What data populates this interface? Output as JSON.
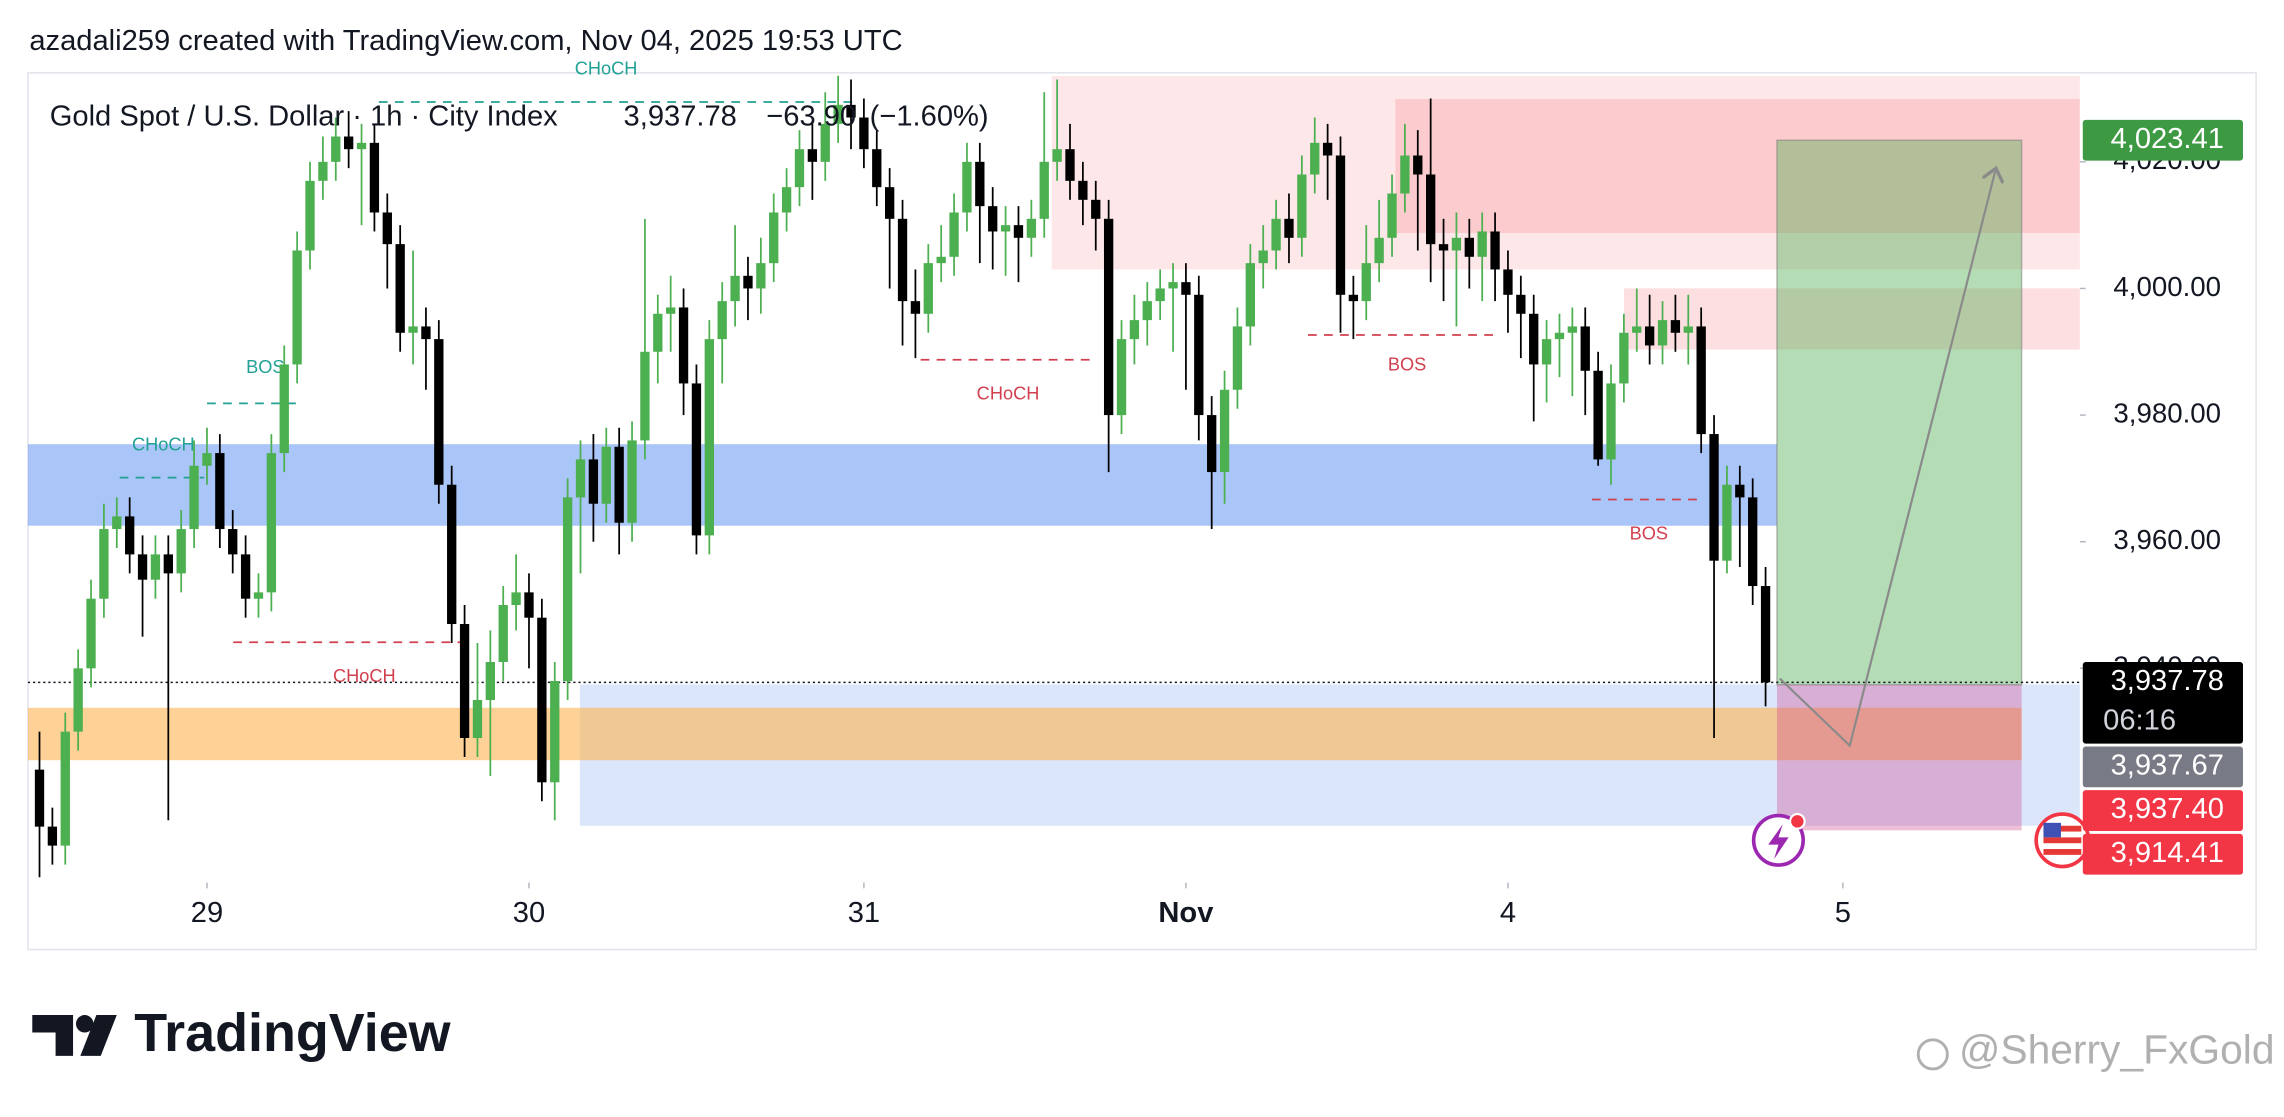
{
  "header": {
    "attribution": "azadali259 created with TradingView.com, Nov 04, 2025 19:53 UTC"
  },
  "chart_data": {
    "type": "candlestick",
    "title": "Gold Spot / U.S. Dollar · 1h · City Index",
    "last": {
      "value": 3937.78,
      "label": "3,937.78"
    },
    "change": {
      "value": -63.9,
      "label": "−63.90"
    },
    "change_pct": {
      "value": -1.6,
      "label": "(−1.60%)"
    },
    "colors": {
      "up": "#4caf50",
      "down": "#000000"
    },
    "x": [
      0,
      1,
      2,
      3,
      4,
      5,
      6,
      7,
      8,
      9,
      10,
      11,
      12,
      13,
      14,
      15,
      16,
      17,
      18,
      19,
      20,
      21,
      22,
      23,
      24,
      25,
      26,
      27,
      28,
      29,
      30,
      31,
      32,
      33,
      34,
      35,
      36,
      37,
      38,
      39,
      40,
      41,
      42,
      43,
      44,
      45,
      46,
      47,
      48,
      49,
      50,
      51,
      52,
      53,
      54,
      55,
      56,
      57,
      58,
      59,
      60,
      61,
      62,
      63,
      64,
      65,
      66,
      67,
      68,
      69,
      70,
      71,
      72,
      73,
      74,
      75,
      76,
      77,
      78,
      79,
      80,
      81,
      82,
      83,
      84,
      85,
      86,
      87,
      88,
      89,
      90,
      91,
      92,
      93,
      94,
      95,
      96,
      97,
      98,
      99,
      100,
      101,
      102,
      103,
      104,
      105,
      106,
      107,
      108,
      109,
      110,
      111,
      112,
      113,
      114,
      115,
      116,
      117,
      118,
      119,
      120,
      121,
      122,
      123,
      124,
      125,
      126,
      127,
      128,
      129,
      130,
      131,
      132,
      133,
      134
    ],
    "open": [
      3924,
      3915,
      3912,
      3930,
      3940,
      3951,
      3962,
      3964,
      3958,
      3954,
      3958,
      3955,
      3962,
      3972,
      3974,
      3962,
      3958,
      3951,
      3952,
      3974,
      3988,
      4006,
      4017,
      4020,
      4024,
      4022,
      4023,
      4012,
      4007,
      3993,
      3994,
      3992,
      3969,
      3947,
      3929,
      3935,
      3941,
      3950,
      3952,
      3948,
      3922,
      3938,
      3967,
      3973,
      3966,
      3975,
      3963,
      3976,
      3990,
      3996,
      3997,
      3985,
      3961,
      3992,
      3998,
      4002,
      4000,
      4004,
      4012,
      4016,
      4022,
      4020,
      4026,
      4029,
      4027,
      4022,
      4016,
      4011,
      3998,
      3996,
      4004,
      4005,
      4012,
      4020,
      4013,
      4009,
      4010,
      4008,
      4011,
      4020,
      4022,
      4017,
      4014,
      4011,
      3980,
      3992,
      3995,
      3998,
      4000,
      4001,
      3999,
      3980,
      3971,
      3984,
      3994,
      4004,
      4006,
      4011,
      4008,
      4018,
      4023,
      4021,
      3999,
      3998,
      4004,
      4008,
      4015,
      4021,
      4018,
      4007,
      4006,
      4008,
      4005,
      4009,
      4003,
      3999,
      3996,
      3988,
      3992,
      3993,
      3994,
      3987,
      3973,
      3985,
      3993,
      3994,
      3991,
      3995,
      3993,
      3994,
      3977,
      3957,
      3969,
      3967,
      3953
    ],
    "high": [
      3930,
      3918,
      3933,
      3943,
      3954,
      3966,
      3967,
      3967,
      3961,
      3961,
      3961,
      3965,
      3976,
      3978,
      3977,
      3965,
      3961,
      3955,
      3977,
      3991,
      4009,
      4020,
      4024,
      4027,
      4028,
      4026,
      4026,
      4015,
      4010,
      4006,
      3997,
      3995,
      3972,
      3950,
      3944,
      3946,
      3953,
      3958,
      3955,
      3951,
      3941,
      3970,
      3976,
      3977,
      3978,
      3978,
      3979,
      4011,
      3999,
      4002,
      4000,
      3988,
      3995,
      4001,
      4010,
      4005,
      4008,
      4015,
      4019,
      4025,
      4026,
      4031,
      4034,
      4033,
      4030,
      4025,
      4019,
      4014,
      4003,
      4007,
      4010,
      4015,
      4023,
      4023,
      4016,
      4013,
      4013,
      4014,
      4031,
      4033,
      4026,
      4020,
      4017,
      4014,
      3995,
      3999,
      4001,
      4003,
      4004,
      4004,
      4002,
      3983,
      3987,
      3997,
      4007,
      4010,
      4014,
      4015,
      4021,
      4027,
      4026,
      4024,
      4002,
      4010,
      4014,
      4018,
      4026,
      4025,
      4030,
      4011,
      4012,
      4011,
      4012,
      4012,
      4006,
      4002,
      3999,
      3995,
      3996,
      3997,
      3997,
      3990,
      3988,
      3996,
      4000,
      3999,
      3998,
      3999,
      3999,
      3997,
      3980,
      3972,
      3972,
      3970,
      3956
    ],
    "low": [
      3907,
      3909,
      3909,
      3927,
      3937,
      3948,
      3959,
      3955,
      3945,
      3951,
      3916,
      3952,
      3959,
      3969,
      3959,
      3955,
      3948,
      3948,
      3949,
      3971,
      3985,
      4003,
      4014,
      4017,
      4019,
      4010,
      4009,
      4000,
      3990,
      3988,
      3984,
      3966,
      3944,
      3926,
      3926,
      3923,
      3938,
      3946,
      3940,
      3919,
      3916,
      3935,
      3955,
      3960,
      3963,
      3958,
      3960,
      3973,
      3985,
      3990,
      3980,
      3958,
      3958,
      3985,
      3994,
      3995,
      3996,
      4001,
      4009,
      4013,
      4014,
      4017,
      4023,
      4022,
      4019,
      4013,
      4000,
      3991,
      3989,
      3993,
      4001,
      4002,
      4009,
      4004,
      4003,
      4002,
      4001,
      4005,
      4008,
      4017,
      4014,
      4010,
      4006,
      3971,
      3977,
      3988,
      3991,
      3995,
      3990,
      3984,
      3976,
      3962,
      3966,
      3981,
      3991,
      4000,
      4003,
      4004,
      4005,
      4015,
      4014,
      3993,
      3992,
      3995,
      4001,
      4005,
      4012,
      4006,
      4001,
      3998,
      3994,
      4000,
      3998,
      3998,
      3993,
      3989,
      3979,
      3982,
      3986,
      3983,
      3980,
      3972,
      3969,
      3982,
      3990,
      3988,
      3988,
      3990,
      3988,
      3974,
      3929,
      3955,
      3956,
      3950,
      3934
    ],
    "close": [
      3915,
      3912,
      3930,
      3940,
      3951,
      3962,
      3964,
      3958,
      3954,
      3958,
      3955,
      3962,
      3972,
      3974,
      3962,
      3958,
      3951,
      3952,
      3974,
      3988,
      4006,
      4017,
      4020,
      4024,
      4022,
      4023,
      4012,
      4007,
      3993,
      3994,
      3992,
      3969,
      3947,
      3929,
      3935,
      3941,
      3950,
      3952,
      3948,
      3922,
      3938,
      3967,
      3973,
      3966,
      3975,
      3963,
      3976,
      3990,
      3996,
      3997,
      3985,
      3961,
      3992,
      3998,
      4002,
      4000,
      4004,
      4012,
      4016,
      4022,
      4020,
      4026,
      4029,
      4027,
      4022,
      4016,
      4011,
      3998,
      3996,
      4004,
      4005,
      4012,
      4020,
      4013,
      4009,
      4010,
      4008,
      4011,
      4020,
      4022,
      4017,
      4014,
      4011,
      3980,
      3992,
      3995,
      3998,
      4000,
      4001,
      3999,
      3980,
      3971,
      3984,
      3994,
      4004,
      4006,
      4011,
      4008,
      4018,
      4023,
      4021,
      3999,
      3998,
      4004,
      4008,
      4015,
      4021,
      4018,
      4007,
      4006,
      4008,
      4005,
      4009,
      4003,
      3999,
      3996,
      3988,
      3992,
      3993,
      3994,
      3987,
      3973,
      3985,
      3993,
      3994,
      3991,
      3995,
      3993,
      3994,
      3977,
      3957,
      3969,
      3967,
      3953,
      3937.78
    ],
    "xlim": [
      -0.9,
      158.4
    ],
    "xticks": [
      {
        "value": 13,
        "label": "29"
      },
      {
        "value": 38,
        "label": "30"
      },
      {
        "value": 64,
        "label": "31"
      },
      {
        "value": 89,
        "label": "Nov"
      },
      {
        "value": 114,
        "label": "4"
      },
      {
        "value": 140,
        "label": "5"
      }
    ],
    "ylim": [
      3906.4,
      4033.6
    ],
    "yticks": [
      {
        "value": 3940,
        "label": "3,940.00"
      },
      {
        "value": 3960,
        "label": "3,960.00"
      },
      {
        "value": 3980,
        "label": "3,980.00"
      },
      {
        "value": 4000,
        "label": "4,000.00"
      },
      {
        "value": 4020,
        "label": "4,020.00"
      }
    ],
    "annotations": [
      "CHoCH",
      "BOS",
      "CHoCH",
      "CHoCH",
      "CHoCH",
      "BOS",
      "BOS"
    ],
    "price_tags": [
      {
        "value": 4023.41,
        "label": "4,023.41",
        "color": "#3d9a43"
      },
      {
        "value": 3937.78,
        "label": "3,937.78",
        "color": "#000000",
        "countdown": "06:16"
      },
      {
        "value": 3937.67,
        "label": "3,937.67",
        "color": "#787b86"
      },
      {
        "value": 3937.4,
        "label": "3,937.40",
        "color": "#f23645"
      },
      {
        "value": 3914.41,
        "label": "3,914.41",
        "color": "#f23645"
      }
    ]
  },
  "footer": {
    "brand": "TradingView",
    "watermark": "@Sherry_FxGold"
  }
}
